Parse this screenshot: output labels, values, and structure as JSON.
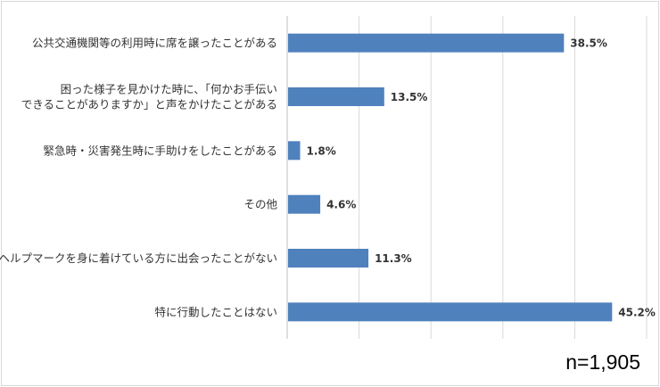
{
  "chart_data": {
    "type": "bar",
    "orientation": "horizontal",
    "categories": [
      "公共交通機関等の利用時に席を譲ったことがある",
      "困った様子を見かけた時に、「何かお手伝い\nできることがありますか」と声をかけたことがある",
      "緊急時・災害発生時に手助けをしたことがある",
      "その他",
      "ヘルプマークを身に着けている方に出会ったことがない",
      "特に行動したことはない"
    ],
    "values": [
      38.5,
      13.5,
      1.8,
      4.6,
      11.3,
      45.2
    ],
    "value_labels": [
      "38.5%",
      "13.5%",
      "1.8%",
      "4.6%",
      "11.3%",
      "45.2%"
    ],
    "xlim": [
      0,
      50
    ],
    "grid": true,
    "bar_color": "#4f81bd",
    "title": "",
    "xlabel": "",
    "ylabel": ""
  },
  "note": "n=1,905"
}
